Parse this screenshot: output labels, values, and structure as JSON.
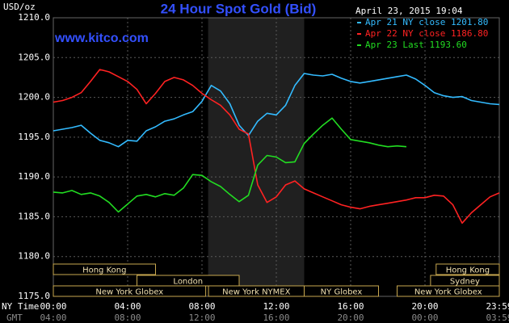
{
  "chart_data": {
    "type": "line",
    "title": "24 Hour Spot Gold (Bid)",
    "subtitle": "www.kitco.com",
    "y_label": "USD/oz",
    "timestamp": "April 23, 2015 19:04",
    "x_label": "NY Time",
    "x2_label": "GMT",
    "xlim": [
      0,
      24
    ],
    "xticks": [
      {
        "value": 0,
        "label": "00:00"
      },
      {
        "value": 4,
        "label": "04:00"
      },
      {
        "value": 8,
        "label": "08:00"
      },
      {
        "value": 12,
        "label": "12:00"
      },
      {
        "value": 16,
        "label": "16:00"
      },
      {
        "value": 20,
        "label": "20:00"
      },
      {
        "value": 24,
        "label": "23:59"
      }
    ],
    "gmt_labels": [
      "04:00",
      "08:00",
      "12:00",
      "16:00",
      "20:00",
      "00:00",
      "03:59"
    ],
    "ylim": [
      1175,
      1210
    ],
    "yticks": [
      {
        "value": 1175,
        "label": "1175.0"
      },
      {
        "value": 1180,
        "label": "1180.0"
      },
      {
        "value": 1185,
        "label": "1185.0"
      },
      {
        "value": 1190,
        "label": "1190.0"
      },
      {
        "value": 1195,
        "label": "1195.0"
      },
      {
        "value": 1200,
        "label": "1200.0"
      },
      {
        "value": 1205,
        "label": "1205.0"
      },
      {
        "value": 1210,
        "label": "1210.0"
      }
    ],
    "grid": true,
    "shaded_range": [
      8.33,
      13.5
    ],
    "series": [
      {
        "name": "Apr 21 NY close 1201.80",
        "color": "#33bbff",
        "x": [
          0,
          0.5,
          1,
          1.5,
          2,
          2.5,
          3,
          3.5,
          4,
          4.5,
          5,
          5.5,
          6,
          6.5,
          7,
          7.5,
          8,
          8.5,
          9,
          9.5,
          10,
          10.5,
          11,
          11.5,
          12,
          12.5,
          13,
          13.5,
          14,
          14.5,
          15,
          15.5,
          16,
          16.5,
          17,
          17.5,
          18,
          18.5,
          19,
          19.5,
          20,
          20.5,
          21,
          21.5,
          22,
          22.5,
          23,
          23.5,
          24
        ],
        "values": [
          1195.8,
          1196,
          1196.2,
          1196.5,
          1195.5,
          1194.6,
          1194.3,
          1193.8,
          1194.6,
          1194.5,
          1195.8,
          1196.3,
          1197,
          1197.3,
          1197.8,
          1198.2,
          1199.5,
          1201.5,
          1200.8,
          1199.2,
          1196.5,
          1195.2,
          1197,
          1198,
          1197.8,
          1199,
          1201.5,
          1203,
          1202.8,
          1202.7,
          1202.9,
          1202.4,
          1202,
          1201.8,
          1202,
          1202.2,
          1202.4,
          1202.6,
          1202.8,
          1202.3,
          1201.5,
          1200.6,
          1200.2,
          1200,
          1200.1,
          1199.6,
          1199.4,
          1199.2,
          1199.1
        ]
      },
      {
        "name": "Apr 22 NY close 1186.80",
        "color": "#ff2222",
        "x": [
          0,
          0.5,
          1,
          1.5,
          2,
          2.5,
          3,
          3.5,
          4,
          4.5,
          5,
          5.5,
          6,
          6.5,
          7,
          7.5,
          8,
          8.5,
          9,
          9.5,
          10,
          10.5,
          11,
          11.5,
          12,
          12.5,
          13,
          13.5,
          14,
          14.5,
          15,
          15.5,
          16,
          16.5,
          17,
          17.5,
          18,
          18.5,
          19,
          19.5,
          20,
          20.5,
          21,
          21.5,
          22,
          22.5,
          23,
          23.5,
          24
        ],
        "values": [
          1199.4,
          1199.6,
          1200,
          1200.6,
          1202,
          1203.5,
          1203.2,
          1202.6,
          1202,
          1201,
          1199.2,
          1200.5,
          1202,
          1202.5,
          1202.2,
          1201.5,
          1200.5,
          1199.7,
          1199,
          1197.8,
          1196,
          1195.4,
          1189,
          1186.8,
          1187.5,
          1189,
          1189.5,
          1188.5,
          1188,
          1187.5,
          1187,
          1186.5,
          1186.2,
          1186,
          1186.3,
          1186.5,
          1186.7,
          1186.9,
          1187.1,
          1187.4,
          1187.4,
          1187.7,
          1187.6,
          1186.5,
          1184.2,
          1185.5,
          1186.5,
          1187.5,
          1188
        ]
      },
      {
        "name": "Apr 23 Last 1193.60",
        "color": "#22dd22",
        "x": [
          0,
          0.5,
          1,
          1.5,
          2,
          2.5,
          3,
          3.5,
          4,
          4.5,
          5,
          5.5,
          6,
          6.5,
          7,
          7.5,
          8,
          8.5,
          9,
          9.5,
          10,
          10.5,
          11,
          11.5,
          12,
          12.5,
          13,
          13.5,
          14,
          14.5,
          15,
          15.5,
          16,
          16.5,
          17,
          17.5,
          18,
          18.5,
          19
        ],
        "values": [
          1188.1,
          1188,
          1188.3,
          1187.8,
          1188,
          1187.6,
          1186.8,
          1185.6,
          1186.6,
          1187.6,
          1187.8,
          1187.5,
          1187.9,
          1187.7,
          1188.6,
          1190.3,
          1190.2,
          1189.4,
          1188.8,
          1187.8,
          1186.9,
          1187.7,
          1191.5,
          1192.7,
          1192.5,
          1191.8,
          1191.9,
          1194.2,
          1195.4,
          1196.5,
          1197.4,
          1196,
          1194.7,
          1194.5,
          1194.3,
          1194,
          1193.8,
          1193.9,
          1193.8
        ]
      }
    ],
    "market_rows": [
      [
        {
          "label": "Hong Kong",
          "start": 0,
          "end": 5.5
        },
        {
          "label": "Hong Kong",
          "start": 20.6,
          "end": 24
        }
      ],
      [
        {
          "label": "London",
          "start": 4.5,
          "end": 10
        },
        {
          "label": "Sydney",
          "start": 20.3,
          "end": 24
        }
      ],
      [
        {
          "label": "New York Globex",
          "start": 0,
          "end": 8.2
        },
        {
          "label": "New York NYMEX",
          "start": 8.35,
          "end": 13.5
        },
        {
          "label": "NY Globex",
          "start": 13.5,
          "end": 17.5
        },
        {
          "label": "New York Globex",
          "start": 18.5,
          "end": 24
        }
      ]
    ]
  }
}
